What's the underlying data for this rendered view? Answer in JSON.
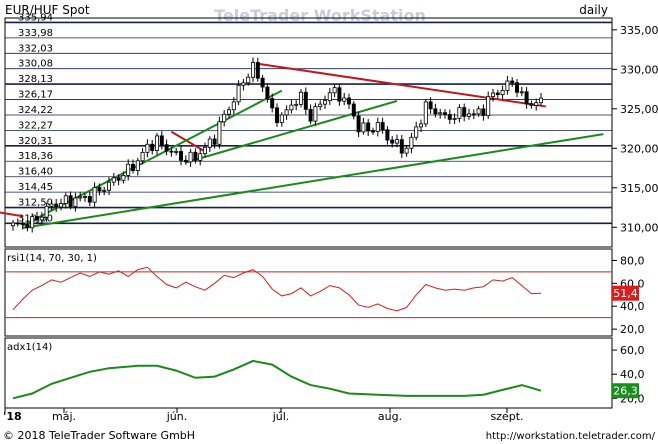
{
  "header": {
    "symbol": "EUR/HUF Spot",
    "watermark": "TeleTrader WorkStation",
    "interval": "daily"
  },
  "footer": {
    "copyright": "© 2018 TeleTrader Software GmbH",
    "url": "http://workstation.teletrader.com/"
  },
  "colors": {
    "candle": "#000000",
    "trend_up": "#1a8a1a",
    "trend_down": "#c0181c",
    "rsi_line": "#d32020",
    "adx_line": "#1a8a1a",
    "rsi_badge": "#d81e1e",
    "adx_badge": "#1c8c1c",
    "hline": "#14204a"
  },
  "chart_data": [
    {
      "type": "candlestick",
      "title": "EUR/HUF Spot",
      "ylim": [
        307.5,
        336.5
      ],
      "y_ticks": [
        "335,00",
        "330,00",
        "325,00",
        "320,00",
        "315,00",
        "310,00"
      ],
      "x_ticks": [
        "'18",
        "máj.",
        "jún.",
        "júl.",
        "aug.",
        "szept."
      ],
      "horizontal_levels": [
        "335,94",
        "333,98",
        "332,03",
        "330,08",
        "328,13",
        "326,17",
        "324,22",
        "322,27",
        "320,31",
        "318,36",
        "316,40",
        "314,45",
        "312,50",
        "310,50"
      ],
      "close_path": [
        [
          0,
          310.2
        ],
        [
          4,
          310.6
        ],
        [
          8,
          312.8
        ],
        [
          12,
          313.4
        ],
        [
          16,
          313.9
        ],
        [
          20,
          315.5
        ],
        [
          24,
          317.2
        ],
        [
          26,
          318.4
        ],
        [
          28,
          320.2
        ],
        [
          30,
          320.9
        ],
        [
          32,
          320.0
        ],
        [
          34,
          319.1
        ],
        [
          36,
          318.6
        ],
        [
          38,
          318.9
        ],
        [
          40,
          320.0
        ],
        [
          42,
          321.4
        ],
        [
          44,
          324.2
        ],
        [
          46,
          326.1
        ],
        [
          48,
          328.6
        ],
        [
          50,
          330.2
        ],
        [
          52,
          328.0
        ],
        [
          54,
          324.5
        ],
        [
          56,
          323.8
        ],
        [
          58,
          325.6
        ],
        [
          60,
          326.4
        ],
        [
          62,
          323.9
        ],
        [
          64,
          325.6
        ],
        [
          66,
          327.1
        ],
        [
          68,
          326.8
        ],
        [
          70,
          325.4
        ],
        [
          72,
          322.7
        ],
        [
          74,
          322.3
        ],
        [
          76,
          322.9
        ],
        [
          78,
          321.4
        ],
        [
          80,
          320.3
        ],
        [
          82,
          319.9
        ],
        [
          84,
          322.5
        ],
        [
          86,
          325.2
        ],
        [
          88,
          324.8
        ],
        [
          90,
          323.9
        ],
        [
          92,
          324.1
        ],
        [
          94,
          324.6
        ],
        [
          96,
          324.2
        ],
        [
          98,
          325.0
        ],
        [
          100,
          326.9
        ],
        [
          102,
          327.4
        ],
        [
          104,
          328.6
        ],
        [
          106,
          326.4
        ],
        [
          108,
          325.6
        ],
        [
          110,
          325.8
        ]
      ],
      "trendlines": [
        {
          "color": "trend_down",
          "from": [
            -3,
            311.9
          ],
          "to": [
            2,
            311.4
          ]
        },
        {
          "color": "trend_down",
          "from": [
            33,
            322.1
          ],
          "to": [
            40,
            319.6
          ]
        },
        {
          "color": "trend_down",
          "from": [
            51,
            330.7
          ],
          "to": [
            111,
            325.3
          ]
        },
        {
          "color": "trend_up",
          "from": [
            2,
            309.9
          ],
          "to": [
            123,
            321.8
          ]
        },
        {
          "color": "trend_up",
          "from": [
            2,
            310.2
          ],
          "to": [
            56,
            327.3
          ]
        },
        {
          "color": "trend_up",
          "from": [
            36,
            318.2
          ],
          "to": [
            80,
            326.0
          ]
        }
      ]
    },
    {
      "type": "line",
      "title": "rsi1(14, 70, 30, 1)",
      "ylim": [
        14,
        90
      ],
      "y_ticks": [
        "80,0",
        "60,0",
        "40,0",
        "20,0"
      ],
      "bands": [
        70,
        30
      ],
      "last_value": "51,4",
      "last": 51.4,
      "values": [
        [
          0,
          37.0
        ],
        [
          2,
          46.0
        ],
        [
          4,
          54.0
        ],
        [
          6,
          58.0
        ],
        [
          8,
          63.0
        ],
        [
          10,
          61.0
        ],
        [
          12,
          65.0
        ],
        [
          14,
          69.0
        ],
        [
          16,
          66.0
        ],
        [
          18,
          70.0
        ],
        [
          20,
          68.0
        ],
        [
          22,
          71.0
        ],
        [
          24,
          66.0
        ],
        [
          26,
          72.0
        ],
        [
          28,
          74.0
        ],
        [
          30,
          66.0
        ],
        [
          32,
          59.0
        ],
        [
          34,
          56.0
        ],
        [
          36,
          61.0
        ],
        [
          38,
          57.0
        ],
        [
          40,
          54.0
        ],
        [
          42,
          60.0
        ],
        [
          44,
          67.0
        ],
        [
          46,
          65.0
        ],
        [
          48,
          69.0
        ],
        [
          50,
          72.0
        ],
        [
          52,
          66.0
        ],
        [
          54,
          55.0
        ],
        [
          56,
          49.0
        ],
        [
          58,
          51.0
        ],
        [
          60,
          56.0
        ],
        [
          62,
          49.0
        ],
        [
          64,
          53.0
        ],
        [
          66,
          58.0
        ],
        [
          68,
          56.0
        ],
        [
          70,
          50.0
        ],
        [
          72,
          41.0
        ],
        [
          74,
          39.0
        ],
        [
          76,
          42.0
        ],
        [
          78,
          38.0
        ],
        [
          80,
          36.0
        ],
        [
          82,
          39.0
        ],
        [
          84,
          50.0
        ],
        [
          86,
          59.0
        ],
        [
          88,
          56.0
        ],
        [
          90,
          54.0
        ],
        [
          92,
          55.0
        ],
        [
          94,
          54.0
        ],
        [
          96,
          56.0
        ],
        [
          98,
          57.0
        ],
        [
          100,
          63.0
        ],
        [
          102,
          62.0
        ],
        [
          104,
          65.0
        ],
        [
          106,
          58.0
        ],
        [
          108,
          51.0
        ],
        [
          110,
          51.4
        ]
      ]
    },
    {
      "type": "line",
      "title": "adx1(14)",
      "ylim": [
        12,
        70
      ],
      "y_ticks": [
        "60,0",
        "40,0",
        "20,0"
      ],
      "last_value": "26,3",
      "last": 26.3,
      "values": [
        [
          0,
          20.0
        ],
        [
          4,
          24.0
        ],
        [
          8,
          32.0
        ],
        [
          12,
          37.0
        ],
        [
          16,
          42.0
        ],
        [
          20,
          45.0
        ],
        [
          26,
          47.0
        ],
        [
          30,
          47.0
        ],
        [
          34,
          43.0
        ],
        [
          38,
          37.0
        ],
        [
          42,
          38.0
        ],
        [
          46,
          44.0
        ],
        [
          50,
          51.0
        ],
        [
          54,
          48.0
        ],
        [
          58,
          38.0
        ],
        [
          62,
          31.0
        ],
        [
          66,
          28.0
        ],
        [
          70,
          24.0
        ],
        [
          76,
          23.0
        ],
        [
          82,
          22.0
        ],
        [
          88,
          22.0
        ],
        [
          94,
          22.0
        ],
        [
          98,
          23.0
        ],
        [
          102,
          27.0
        ],
        [
          106,
          31.0
        ],
        [
          110,
          26.3
        ]
      ]
    }
  ]
}
